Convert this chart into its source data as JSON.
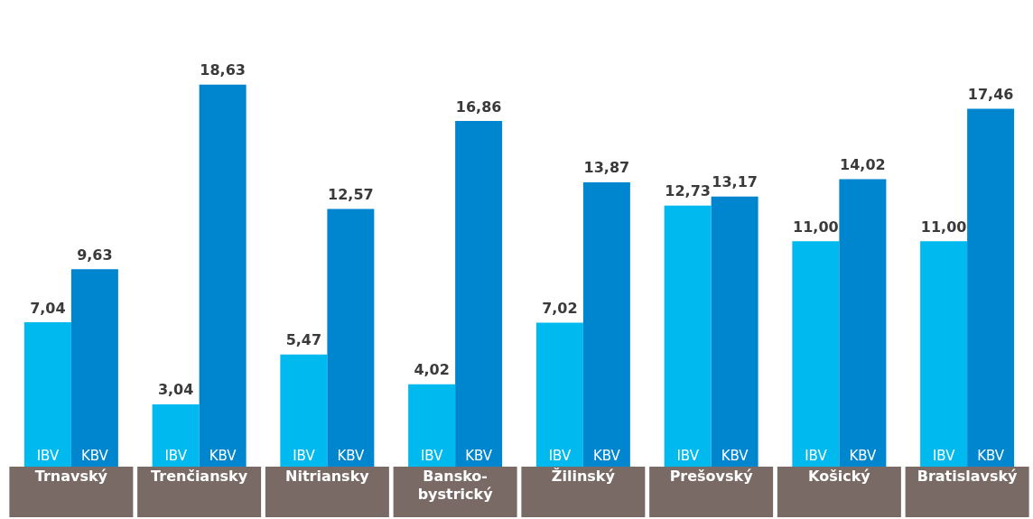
{
  "chart_data": {
    "type": "bar",
    "categories": [
      "Trnavský",
      "Trenčiansky",
      "Nitriansky",
      "Bansko-\nbystrický",
      "Žilinský",
      "Prešovský",
      "Košický",
      "Bratislavský"
    ],
    "series": [
      {
        "name": "IBV",
        "color": "#00b9ef",
        "values": [
          7.04,
          3.04,
          5.47,
          4.02,
          7.02,
          12.73,
          11.0,
          11.0
        ],
        "value_labels": [
          "7,04",
          "3,04",
          "5,47",
          "4,02",
          "7,02",
          "12,73",
          "11,00",
          "11,00"
        ]
      },
      {
        "name": "KBV",
        "color": "#0085cf",
        "values": [
          9.63,
          18.63,
          12.57,
          16.86,
          13.87,
          13.17,
          14.02,
          17.46
        ],
        "value_labels": [
          "9,63",
          "18,63",
          "12,57",
          "16,86",
          "13,87",
          "13,17",
          "14,02",
          "17,46"
        ]
      }
    ],
    "legend": false
  }
}
